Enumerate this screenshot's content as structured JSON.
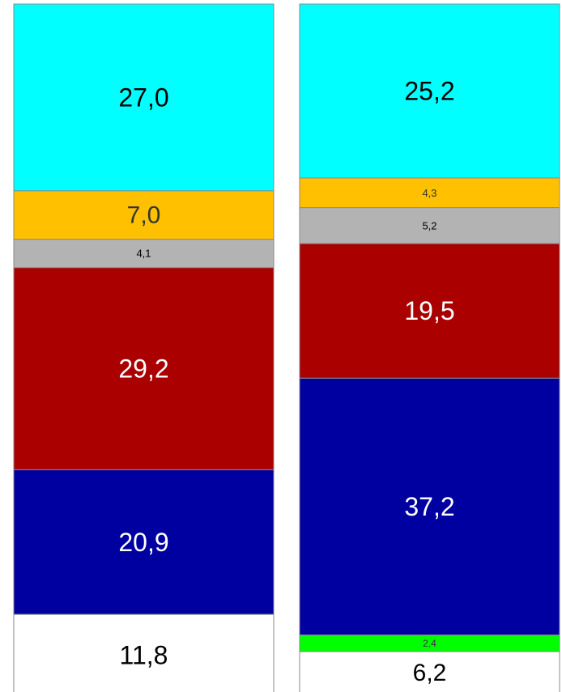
{
  "chart_data": {
    "type": "bar",
    "stacked": true,
    "orientation": "vertical",
    "grid": false,
    "title": "",
    "xlabel": "",
    "ylabel": "",
    "ylim": [
      0,
      100
    ],
    "columns": [
      {
        "segments": [
          {
            "value": 27.0,
            "label": "27,0",
            "color": "#00FFFF",
            "text_color": "#000000"
          },
          {
            "value": 7.0,
            "label": "7,0",
            "color": "#FFC000",
            "text_color": "#333333"
          },
          {
            "value": 4.1,
            "label": "4,1",
            "color": "#B3B3B3",
            "text_color": "#000000"
          },
          {
            "value": 29.2,
            "label": "29,2",
            "color": "#AA0000",
            "text_color": "#FFFFFF"
          },
          {
            "value": 20.9,
            "label": "20,9",
            "color": "#0000A0",
            "text_color": "#FFFFFF"
          },
          {
            "value": 11.8,
            "label": "11,8",
            "color": "#FFFFFF",
            "text_color": "#000000"
          }
        ]
      },
      {
        "segments": [
          {
            "value": 25.2,
            "label": "25,2",
            "color": "#00FFFF",
            "text_color": "#000000"
          },
          {
            "value": 4.3,
            "label": "4,3",
            "color": "#FFC000",
            "text_color": "#333333"
          },
          {
            "value": 5.2,
            "label": "5,2",
            "color": "#B3B3B3",
            "text_color": "#000000"
          },
          {
            "value": 19.5,
            "label": "19,5",
            "color": "#AA0000",
            "text_color": "#FFFFFF"
          },
          {
            "value": 37.2,
            "label": "37,2",
            "color": "#0000A0",
            "text_color": "#FFFFFF"
          },
          {
            "value": 2.4,
            "label": "2,4",
            "color": "#00FF00",
            "text_color": "#333333"
          },
          {
            "value": 6.2,
            "label": "6,2",
            "color": "#FFFFFF",
            "text_color": "#000000"
          }
        ]
      }
    ]
  }
}
